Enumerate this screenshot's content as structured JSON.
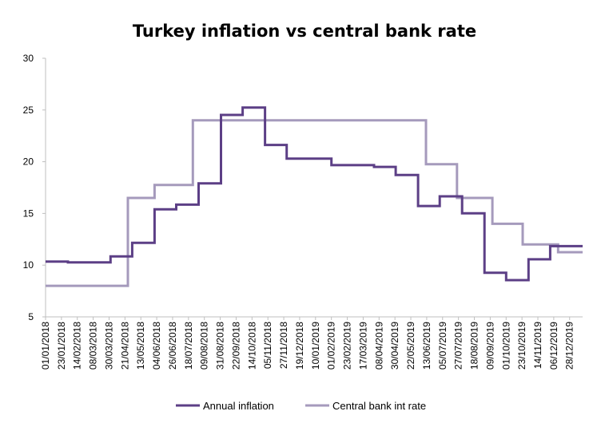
{
  "chart_data": {
    "type": "line",
    "title": "Turkey inflation vs central bank rate",
    "xlabel": "",
    "ylabel": "",
    "ylim": [
      5,
      30
    ],
    "yticks": [
      5,
      10,
      15,
      20,
      25,
      30
    ],
    "grid": false,
    "legend_position": "bottom",
    "x_tick_labels": [
      "01/01/2018",
      "23/01/2018",
      "14/02/2018",
      "08/03/2018",
      "30/03/2018",
      "21/04/2018",
      "13/05/2018",
      "04/06/2018",
      "26/06/2018",
      "18/07/2018",
      "09/08/2018",
      "31/08/2018",
      "22/09/2018",
      "14/10/2018",
      "05/11/2018",
      "27/11/2018",
      "19/12/2018",
      "10/01/2019",
      "01/02/2019",
      "23/02/2019",
      "17/03/2019",
      "08/04/2019",
      "30/04/2019",
      "22/05/2019",
      "13/06/2019",
      "05/07/2019",
      "27/07/2019",
      "18/08/2019",
      "09/09/2019",
      "01/10/2019",
      "23/10/2019",
      "14/11/2019",
      "06/12/2019",
      "28/12/2019"
    ],
    "x_range": [
      "01/01/2018",
      "15/01/2020"
    ],
    "series": [
      {
        "name": "Annual inflation",
        "color": "#5c3f86",
        "step_points": [
          [
            "01/01/2018",
            10.35
          ],
          [
            "01/02/2018",
            10.26
          ],
          [
            "01/04/2018",
            10.85
          ],
          [
            "01/05/2018",
            12.15
          ],
          [
            "01/06/2018",
            15.39
          ],
          [
            "01/07/2018",
            15.85
          ],
          [
            "01/08/2018",
            17.9
          ],
          [
            "01/09/2018",
            24.52
          ],
          [
            "01/10/2018",
            25.24
          ],
          [
            "01/11/2018",
            21.62
          ],
          [
            "01/12/2018",
            20.3
          ],
          [
            "01/02/2019",
            19.67
          ],
          [
            "01/04/2019",
            19.5
          ],
          [
            "01/05/2019",
            18.71
          ],
          [
            "01/06/2019",
            15.72
          ],
          [
            "01/07/2019",
            16.65
          ],
          [
            "01/08/2019",
            15.01
          ],
          [
            "01/09/2019",
            9.26
          ],
          [
            "01/10/2019",
            8.55
          ],
          [
            "01/11/2019",
            10.56
          ],
          [
            "01/12/2019",
            11.84
          ],
          [
            "15/01/2020",
            11.84
          ]
        ]
      },
      {
        "name": "Central bank int rate",
        "color": "#a59abc",
        "step_points": [
          [
            "01/01/2018",
            8.0
          ],
          [
            "25/04/2018",
            16.5
          ],
          [
            "01/06/2018",
            17.75
          ],
          [
            "24/07/2018",
            24.0
          ],
          [
            "12/06/2019",
            19.75
          ],
          [
            "25/07/2019",
            16.5
          ],
          [
            "12/09/2019",
            14.0
          ],
          [
            "24/10/2019",
            12.0
          ],
          [
            "12/12/2019",
            11.25
          ],
          [
            "15/01/2020",
            11.25
          ]
        ]
      }
    ]
  }
}
